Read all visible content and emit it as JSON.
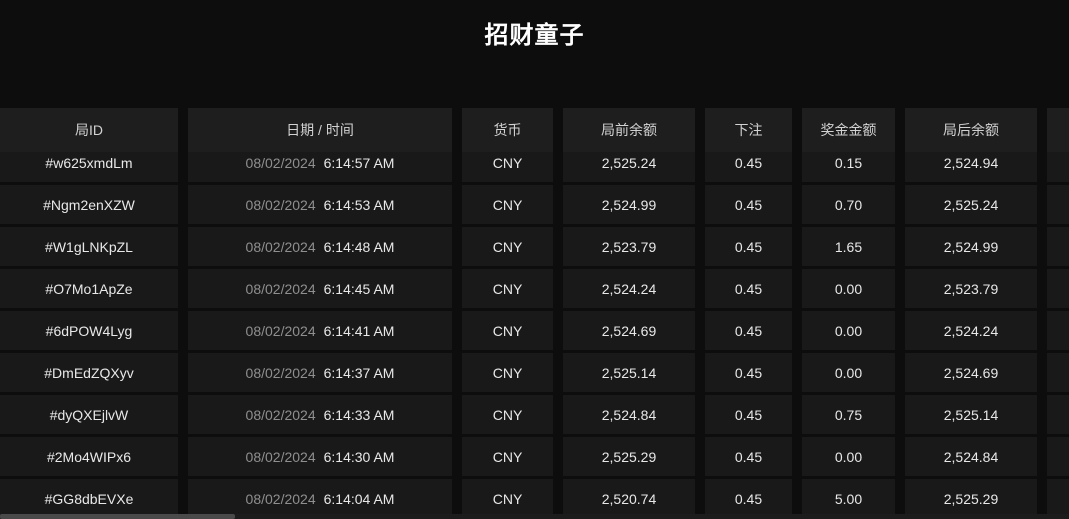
{
  "title": "招财童子",
  "colors": {
    "page_bg": "#0d0d0d",
    "header_bg": "#1e1e1e",
    "row_bg": "#191919",
    "title_text": "#ffffff",
    "primary_text": "#e8e8e8",
    "date_dim_text": "#8f8f8f"
  },
  "table": {
    "columns": [
      "局ID",
      "日期 / 时间",
      "货币",
      "局前余额",
      "下注",
      "奖金金额",
      "局后余额"
    ],
    "rows": [
      {
        "id": "#w625xmdLm",
        "date": "08/02/2024",
        "time": "6:14:57 AM",
        "currency": "CNY",
        "balance_before": "2,525.24",
        "bet": "0.45",
        "prize": "0.15",
        "balance_after": "2,524.94"
      },
      {
        "id": "#Ngm2enXZW",
        "date": "08/02/2024",
        "time": "6:14:53 AM",
        "currency": "CNY",
        "balance_before": "2,524.99",
        "bet": "0.45",
        "prize": "0.70",
        "balance_after": "2,525.24"
      },
      {
        "id": "#W1gLNKpZL",
        "date": "08/02/2024",
        "time": "6:14:48 AM",
        "currency": "CNY",
        "balance_before": "2,523.79",
        "bet": "0.45",
        "prize": "1.65",
        "balance_after": "2,524.99"
      },
      {
        "id": "#O7Mo1ApZe",
        "date": "08/02/2024",
        "time": "6:14:45 AM",
        "currency": "CNY",
        "balance_before": "2,524.24",
        "bet": "0.45",
        "prize": "0.00",
        "balance_after": "2,523.79"
      },
      {
        "id": "#6dPOW4Lyg",
        "date": "08/02/2024",
        "time": "6:14:41 AM",
        "currency": "CNY",
        "balance_before": "2,524.69",
        "bet": "0.45",
        "prize": "0.00",
        "balance_after": "2,524.24"
      },
      {
        "id": "#DmEdZQXyv",
        "date": "08/02/2024",
        "time": "6:14:37 AM",
        "currency": "CNY",
        "balance_before": "2,525.14",
        "bet": "0.45",
        "prize": "0.00",
        "balance_after": "2,524.69"
      },
      {
        "id": "#dyQXEjlvW",
        "date": "08/02/2024",
        "time": "6:14:33 AM",
        "currency": "CNY",
        "balance_before": "2,524.84",
        "bet": "0.45",
        "prize": "0.75",
        "balance_after": "2,525.14"
      },
      {
        "id": "#2Mo4WIPx6",
        "date": "08/02/2024",
        "time": "6:14:30 AM",
        "currency": "CNY",
        "balance_before": "2,525.29",
        "bet": "0.45",
        "prize": "0.00",
        "balance_after": "2,524.84"
      },
      {
        "id": "#GG8dbEVXe",
        "date": "08/02/2024",
        "time": "6:14:04 AM",
        "currency": "CNY",
        "balance_before": "2,520.74",
        "bet": "0.45",
        "prize": "5.00",
        "balance_after": "2,525.29"
      }
    ]
  }
}
